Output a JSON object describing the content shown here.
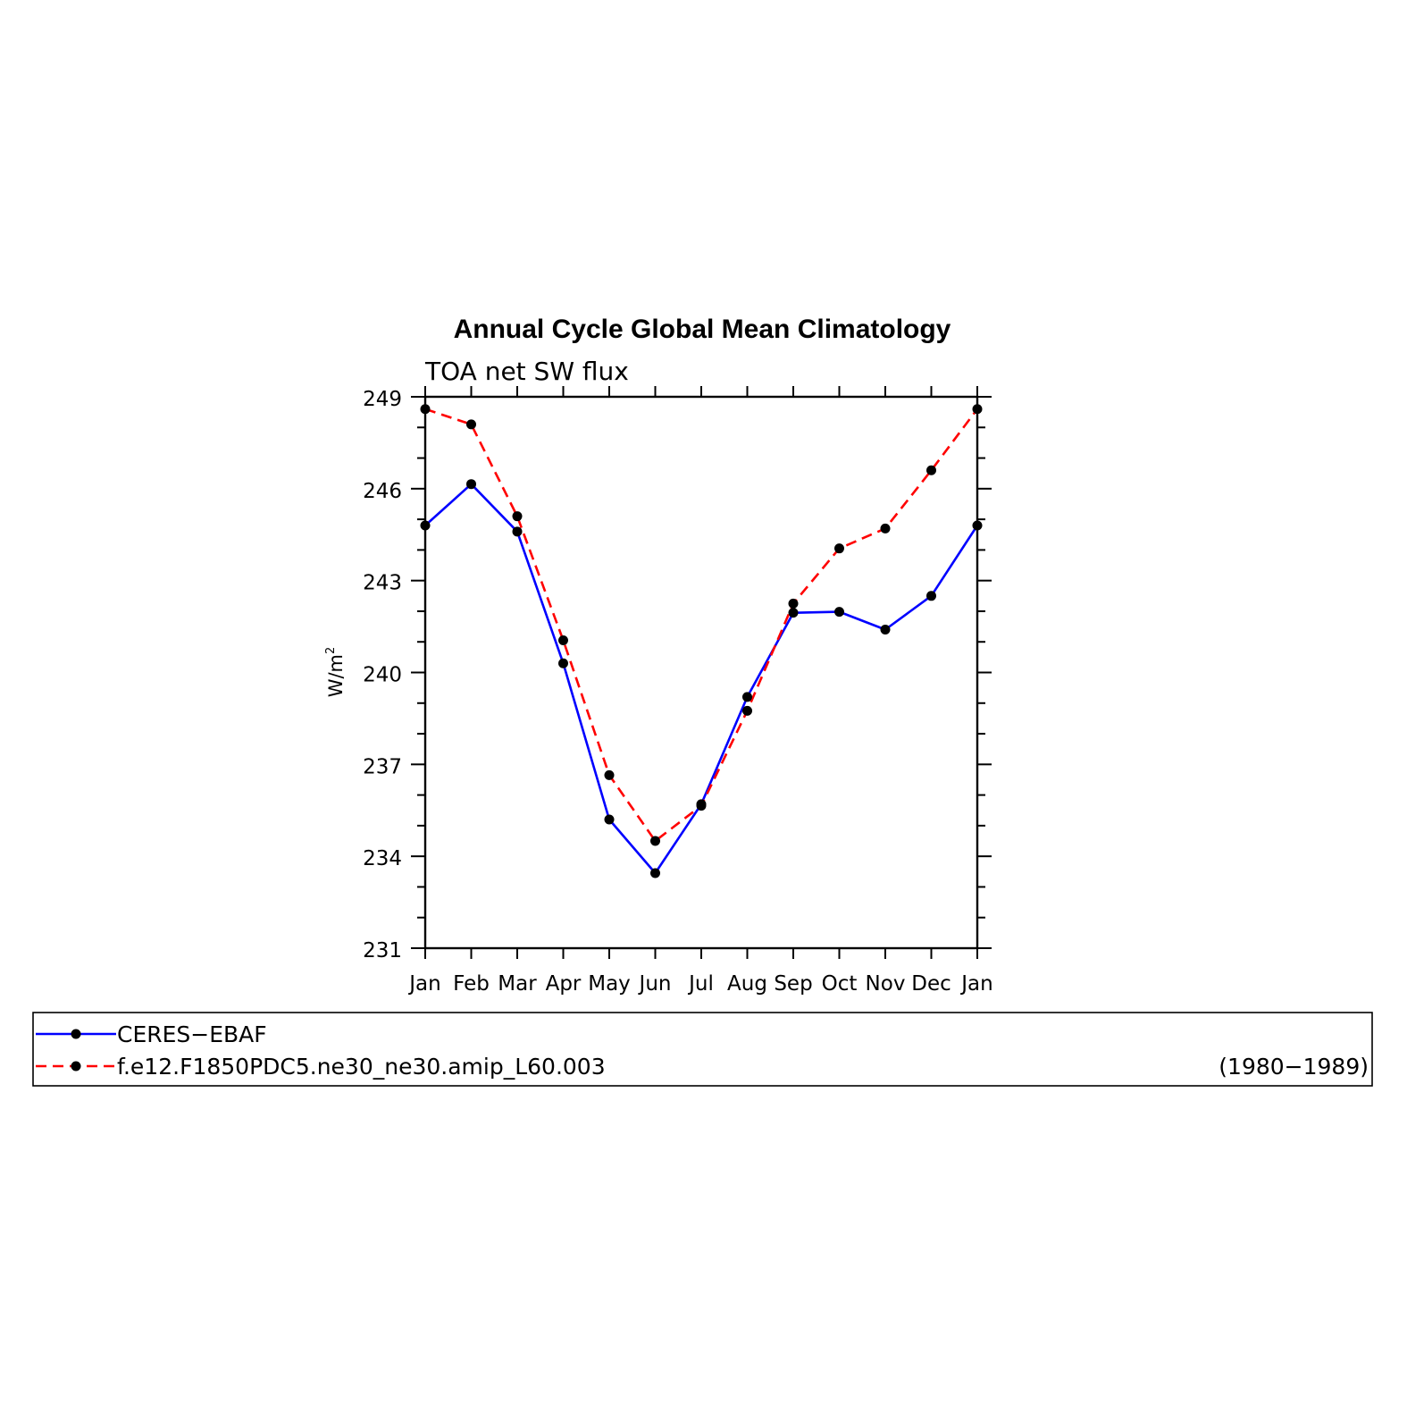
{
  "chart_data": {
    "type": "line",
    "title": "Annual Cycle Global Mean Climatology",
    "subtitle": "TOA net SW flux",
    "ylabel": "W/m",
    "ylabel_superscript": "2",
    "xlabel": "",
    "categories": [
      "Jan",
      "Feb",
      "Mar",
      "Apr",
      "May",
      "Jun",
      "Jul",
      "Aug",
      "Sep",
      "Oct",
      "Nov",
      "Dec",
      "Jan"
    ],
    "ylim": [
      231,
      249
    ],
    "yticks": [
      "231",
      "234",
      "237",
      "240",
      "243",
      "246",
      "249"
    ],
    "series": [
      {
        "name": "CERES−EBAF",
        "color": "#0000ff",
        "dash": "solid",
        "marker": "filled-circle",
        "values": [
          244.8,
          246.15,
          244.6,
          240.3,
          235.2,
          233.45,
          235.7,
          239.2,
          241.95,
          241.98,
          241.4,
          242.5,
          244.8
        ]
      },
      {
        "name": "f.e12.F1850PDC5.ne30_ne30.amip_L60.003",
        "color": "#ff0000",
        "dash": "dashed",
        "marker": "filled-circle",
        "values": [
          248.6,
          248.1,
          245.1,
          241.05,
          236.65,
          234.5,
          235.65,
          238.75,
          242.25,
          244.05,
          244.7,
          246.6,
          248.6
        ]
      }
    ],
    "legend": {
      "placement": "bottom",
      "entries": [
        "CERES−EBAF",
        "f.e12.F1850PDC5.ne30_ne30.amip_L60.003"
      ],
      "note": "(1980−1989)"
    },
    "grid": false
  }
}
